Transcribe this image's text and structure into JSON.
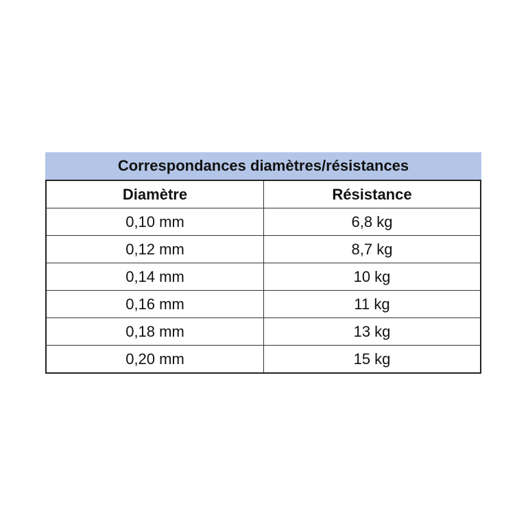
{
  "table": {
    "title": "Correspondances diamètres/résistances",
    "headers": [
      "Diamètre",
      "Résistance"
    ],
    "rows": [
      [
        "0,10 mm",
        "6,8 kg"
      ],
      [
        "0,12 mm",
        "8,7 kg"
      ],
      [
        "0,14 mm",
        "10 kg"
      ],
      [
        "0,16 mm",
        "11 kg"
      ],
      [
        "0,18 mm",
        "13 kg"
      ],
      [
        "0,20 mm",
        "15 kg"
      ]
    ],
    "title_background": "#b4c6e7"
  }
}
